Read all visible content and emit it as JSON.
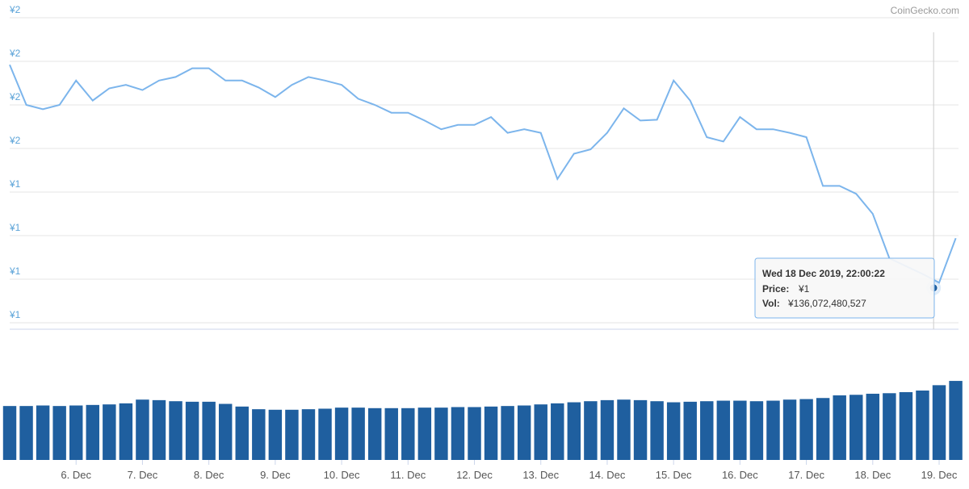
{
  "chart_data": {
    "type": "line",
    "credit": "CoinGecko.com",
    "xlim": [
      "2019-12-05T00:00",
      "2019-12-19T07:00"
    ],
    "xticks": [
      {
        "value": "2019-12-06T00:00",
        "label": "6. Dec"
      },
      {
        "value": "2019-12-07T00:00",
        "label": "7. Dec"
      },
      {
        "value": "2019-12-08T00:00",
        "label": "8. Dec"
      },
      {
        "value": "2019-12-09T00:00",
        "label": "9. Dec"
      },
      {
        "value": "2019-12-10T00:00",
        "label": "10. Dec"
      },
      {
        "value": "2019-12-11T00:00",
        "label": "11. Dec"
      },
      {
        "value": "2019-12-12T00:00",
        "label": "12. Dec"
      },
      {
        "value": "2019-12-13T00:00",
        "label": "13. Dec"
      },
      {
        "value": "2019-12-14T00:00",
        "label": "14. Dec"
      },
      {
        "value": "2019-12-15T00:00",
        "label": "15. Dec"
      },
      {
        "value": "2019-12-16T00:00",
        "label": "16. Dec"
      },
      {
        "value": "2019-12-17T00:00",
        "label": "17. Dec"
      },
      {
        "value": "2019-12-18T00:00",
        "label": "18. Dec"
      },
      {
        "value": "2019-12-19T00:00",
        "label": "19. Dec"
      }
    ],
    "ylim": [
      1.3,
      1.65
    ],
    "yticks": [
      {
        "value": 1.65,
        "label": "¥2"
      },
      {
        "value": 1.6,
        "label": "¥2"
      },
      {
        "value": 1.55,
        "label": "¥2"
      },
      {
        "value": 1.5,
        "label": "¥2"
      },
      {
        "value": 1.45,
        "label": "¥1"
      },
      {
        "value": 1.4,
        "label": "¥1"
      },
      {
        "value": 1.35,
        "label": "¥1"
      },
      {
        "value": 1.3,
        "label": "¥1"
      }
    ],
    "grid": true,
    "volume_ylim": [
      0,
      204000000000
    ],
    "x": [
      "2019-12-05T00:00",
      "2019-12-05T06:00",
      "2019-12-05T12:00",
      "2019-12-05T18:00",
      "2019-12-06T00:00",
      "2019-12-06T06:00",
      "2019-12-06T12:00",
      "2019-12-06T18:00",
      "2019-12-07T00:00",
      "2019-12-07T06:00",
      "2019-12-07T12:00",
      "2019-12-07T18:00",
      "2019-12-08T00:00",
      "2019-12-08T06:00",
      "2019-12-08T12:00",
      "2019-12-08T18:00",
      "2019-12-09T00:00",
      "2019-12-09T06:00",
      "2019-12-09T12:00",
      "2019-12-09T18:00",
      "2019-12-10T00:00",
      "2019-12-10T06:00",
      "2019-12-10T12:00",
      "2019-12-10T18:00",
      "2019-12-11T00:00",
      "2019-12-11T06:00",
      "2019-12-11T12:00",
      "2019-12-11T18:00",
      "2019-12-12T00:00",
      "2019-12-12T06:00",
      "2019-12-12T12:00",
      "2019-12-12T18:00",
      "2019-12-13T00:00",
      "2019-12-13T06:00",
      "2019-12-13T12:00",
      "2019-12-13T18:00",
      "2019-12-14T00:00",
      "2019-12-14T06:00",
      "2019-12-14T12:00",
      "2019-12-14T18:00",
      "2019-12-15T00:00",
      "2019-12-15T06:00",
      "2019-12-15T12:00",
      "2019-12-15T18:00",
      "2019-12-16T00:00",
      "2019-12-16T06:00",
      "2019-12-16T12:00",
      "2019-12-16T18:00",
      "2019-12-17T00:00",
      "2019-12-17T06:00",
      "2019-12-17T12:00",
      "2019-12-17T18:00",
      "2019-12-18T00:00",
      "2019-12-18T06:00",
      "2019-12-18T12:00",
      "2019-12-18T18:00",
      "2019-12-19T00:00",
      "2019-12-19T06:00"
    ],
    "series": [
      {
        "name": "Price",
        "color": "#7cb5ec",
        "values": [
          1.596,
          1.55,
          1.545,
          1.55,
          1.578,
          1.555,
          1.569,
          1.573,
          1.567,
          1.578,
          1.582,
          1.592,
          1.592,
          1.578,
          1.578,
          1.57,
          1.559,
          1.573,
          1.582,
          1.578,
          1.573,
          1.557,
          1.55,
          1.541,
          1.541,
          1.532,
          1.522,
          1.527,
          1.527,
          1.536,
          1.518,
          1.522,
          1.518,
          1.465,
          1.494,
          1.499,
          1.518,
          1.546,
          1.532,
          1.533,
          1.578,
          1.555,
          1.513,
          1.508,
          1.536,
          1.522,
          1.522,
          1.518,
          1.513,
          1.457,
          1.457,
          1.448,
          1.425,
          1.374,
          1.365,
          1.356,
          1.346,
          1.397
        ]
      },
      {
        "name": "Vol",
        "color": "#1f5f9f",
        "axis": "volume",
        "values": [
          101000000000,
          101000000000,
          102000000000,
          101000000000,
          102000000000,
          103000000000,
          104000000000,
          106000000000,
          113000000000,
          112000000000,
          110000000000,
          109000000000,
          109000000000,
          105000000000,
          100000000000,
          95000000000,
          94000000000,
          94000000000,
          95000000000,
          96000000000,
          98000000000,
          98000000000,
          97000000000,
          97000000000,
          97000000000,
          98000000000,
          98000000000,
          99000000000,
          99000000000,
          100000000000,
          101000000000,
          102000000000,
          104000000000,
          106000000000,
          108000000000,
          110000000000,
          112000000000,
          113000000000,
          112000000000,
          110000000000,
          108000000000,
          109000000000,
          110000000000,
          111000000000,
          111000000000,
          110000000000,
          111000000000,
          113000000000,
          114000000000,
          116000000000,
          121000000000,
          122000000000,
          124000000000,
          125000000000,
          127000000000,
          130000000000,
          140000000000,
          148000000000
        ]
      }
    ],
    "tooltip": {
      "date": "Wed 18 Dec 2019, 22:00:22",
      "x": "2019-12-18T22:00",
      "price_name": "Price:",
      "price": 1.34,
      "price_label": "¥1",
      "volume_name": "Vol:",
      "volume": 136072480527,
      "volume_label": "¥136,072,480,527"
    }
  }
}
